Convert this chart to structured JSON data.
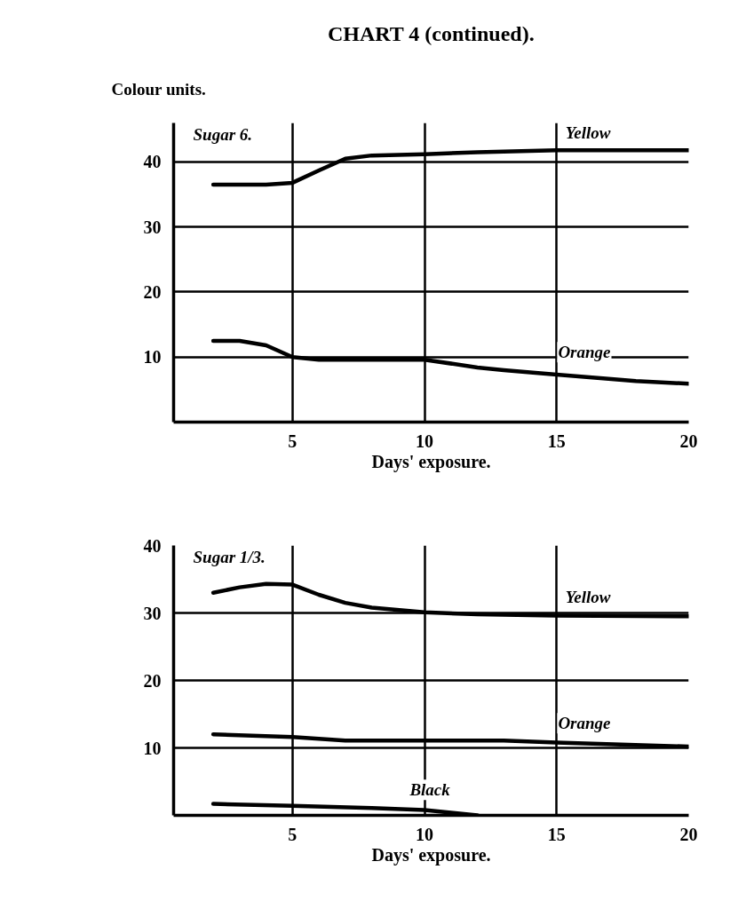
{
  "chart_data": [
    {
      "type": "line",
      "title": "CHART 4 (continued).",
      "ylabel": "Colour units.",
      "xlabel": "Days' exposure.",
      "annotations": [
        "Sugar 6."
      ],
      "xlim": [
        0.5,
        20
      ],
      "xticks": [
        5,
        10,
        15,
        20
      ],
      "ylim": [
        0,
        46
      ],
      "yticks": [
        10,
        20,
        30,
        40
      ],
      "grid": true,
      "series": [
        {
          "name": "Yellow",
          "color": "#000000",
          "x": [
            2,
            3,
            4,
            5,
            6,
            7,
            8,
            10,
            12,
            15,
            18,
            20
          ],
          "values": [
            36.5,
            36.5,
            36.5,
            36.8,
            38.7,
            40.5,
            41,
            41.2,
            41.5,
            41.8,
            41.8,
            41.8
          ]
        },
        {
          "name": "Orange",
          "color": "#000000",
          "x": [
            2,
            3,
            4,
            5,
            6,
            8,
            10,
            12,
            13,
            15,
            18,
            20
          ],
          "values": [
            12.5,
            12.5,
            11.8,
            10,
            9.6,
            9.6,
            9.6,
            8.4,
            8,
            7.3,
            6.3,
            5.9
          ]
        }
      ]
    },
    {
      "type": "line",
      "xlabel": "Days' exposure.",
      "annotations": [
        "Sugar 1/3."
      ],
      "xlim": [
        0.5,
        20
      ],
      "xticks": [
        5,
        10,
        15,
        20
      ],
      "ylim": [
        0,
        40
      ],
      "yticks": [
        10,
        20,
        30,
        40
      ],
      "grid": true,
      "series": [
        {
          "name": "Yellow",
          "color": "#000000",
          "x": [
            2,
            3,
            4,
            5,
            6,
            7,
            8,
            10,
            12,
            15,
            20
          ],
          "values": [
            33,
            33.8,
            34.3,
            34.2,
            32.7,
            31.5,
            30.8,
            30.1,
            29.8,
            29.6,
            29.5
          ]
        },
        {
          "name": "Orange",
          "color": "#000000",
          "x": [
            2,
            5,
            7,
            10,
            13,
            15,
            20
          ],
          "values": [
            12,
            11.6,
            11.1,
            11.1,
            11.1,
            10.8,
            10.2
          ]
        },
        {
          "name": "Black",
          "color": "#000000",
          "x": [
            2,
            5,
            8,
            10,
            11,
            12
          ],
          "values": [
            1.7,
            1.4,
            1.1,
            0.8,
            0.4,
            0
          ]
        }
      ]
    }
  ]
}
